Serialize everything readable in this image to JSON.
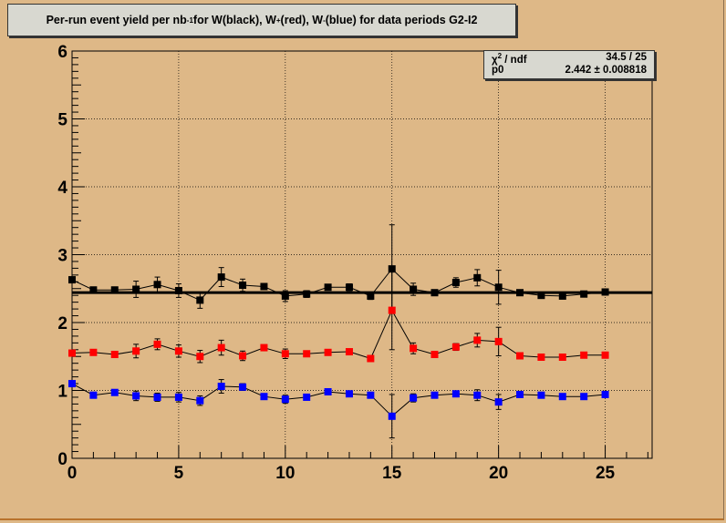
{
  "title": {
    "prefix": "Per-run event yield per nb",
    "exp1": "-1",
    "mid1": " for W(black), W",
    "exp2": "+",
    "mid2": "(red), W",
    "exp3": "-",
    "suffix": "(blue) for data periods G2-I2"
  },
  "stats": {
    "row1_label_base": "χ",
    "row1_label_exp": "2",
    "row1_label_rest": " / ndf",
    "row1_value": "34.5 / 25",
    "row2_label": "p0",
    "row2_value": "2.442 ± 0.008818"
  },
  "colors": {
    "background": "#deb887",
    "black_series": "#000000",
    "red_series": "#ff0000",
    "blue_series": "#0000ff"
  },
  "chart_data": {
    "type": "scatter",
    "x_ticks": [
      "0",
      "5",
      "10",
      "15",
      "20",
      "25"
    ],
    "y_ticks": [
      "0",
      "1",
      "2",
      "3",
      "4",
      "5",
      "6"
    ],
    "xlim": [
      0,
      27.2
    ],
    "ylim": [
      0,
      6
    ],
    "grid": true,
    "fit": {
      "p0": 2.442
    },
    "series": [
      {
        "color": "#000000",
        "x": [
          0,
          1,
          2,
          3,
          4,
          5,
          6,
          7,
          8,
          9,
          10,
          11,
          12,
          13,
          14,
          15,
          16,
          17,
          18,
          19,
          20,
          21,
          22,
          23,
          24,
          25
        ],
        "y": [
          2.63,
          2.48,
          2.48,
          2.49,
          2.56,
          2.47,
          2.33,
          2.67,
          2.55,
          2.53,
          2.39,
          2.42,
          2.52,
          2.52,
          2.39,
          2.79,
          2.49,
          2.44,
          2.59,
          2.66,
          2.52,
          2.44,
          2.4,
          2.39,
          2.42,
          2.45
        ],
        "err": [
          0.03,
          0.02,
          0.03,
          0.12,
          0.11,
          0.1,
          0.12,
          0.14,
          0.09,
          0.04,
          0.08,
          0.05,
          0.04,
          0.05,
          0.05,
          0.65,
          0.09,
          0.04,
          0.07,
          0.12,
          0.25,
          0.04,
          0.04,
          0.04,
          0.03,
          0.03
        ]
      },
      {
        "color": "#ff0000",
        "x": [
          0,
          1,
          2,
          3,
          4,
          5,
          6,
          7,
          8,
          9,
          10,
          11,
          12,
          13,
          14,
          15,
          16,
          17,
          18,
          19,
          20,
          21,
          22,
          23,
          24,
          25
        ],
        "y": [
          1.55,
          1.56,
          1.53,
          1.58,
          1.68,
          1.58,
          1.5,
          1.63,
          1.51,
          1.63,
          1.54,
          1.54,
          1.56,
          1.57,
          1.47,
          2.18,
          1.62,
          1.53,
          1.64,
          1.74,
          1.72,
          1.51,
          1.49,
          1.49,
          1.52,
          1.52
        ],
        "err": [
          0.03,
          0.02,
          0.03,
          0.1,
          0.08,
          0.09,
          0.09,
          0.11,
          0.07,
          0.04,
          0.07,
          0.04,
          0.03,
          0.04,
          0.04,
          0.58,
          0.08,
          0.04,
          0.05,
          0.1,
          0.21,
          0.03,
          0.03,
          0.03,
          0.03,
          0.03
        ]
      },
      {
        "color": "#0000ff",
        "x": [
          0,
          1,
          2,
          3,
          4,
          5,
          6,
          7,
          8,
          9,
          10,
          11,
          12,
          13,
          14,
          15,
          16,
          17,
          18,
          19,
          20,
          21,
          22,
          23,
          24,
          25
        ],
        "y": [
          1.1,
          0.93,
          0.97,
          0.92,
          0.9,
          0.9,
          0.85,
          1.06,
          1.05,
          0.91,
          0.87,
          0.9,
          0.98,
          0.95,
          0.93,
          0.62,
          0.89,
          0.93,
          0.95,
          0.93,
          0.83,
          0.94,
          0.93,
          0.91,
          0.91,
          0.94
        ],
        "err": [
          0.03,
          0.02,
          0.03,
          0.07,
          0.06,
          0.07,
          0.07,
          0.1,
          0.05,
          0.03,
          0.06,
          0.03,
          0.03,
          0.03,
          0.03,
          0.32,
          0.06,
          0.03,
          0.04,
          0.08,
          0.11,
          0.03,
          0.03,
          0.03,
          0.02,
          0.03
        ]
      }
    ]
  }
}
